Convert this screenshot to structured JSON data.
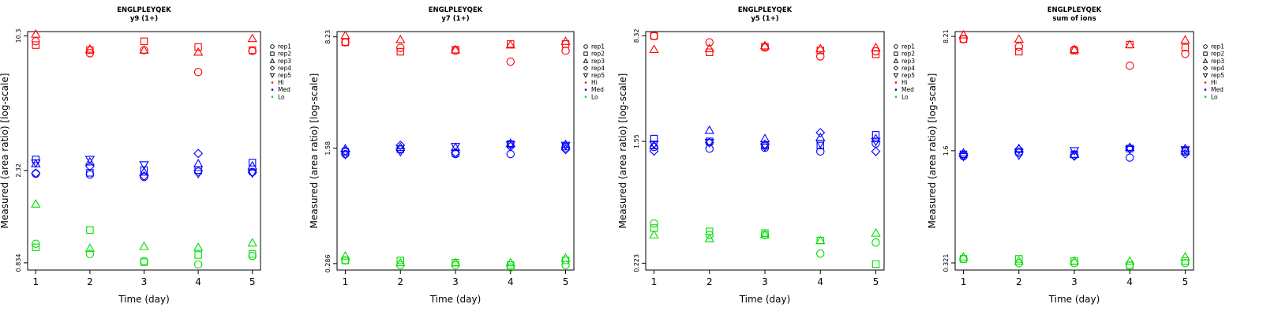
{
  "chart_data": [
    {
      "type": "scatter",
      "title": "ENGLPLEYQEK",
      "subtitle": "y9 (1+)",
      "xlabel": "Time (day)",
      "ylabel": "Measured (area ratio) [log-scale]",
      "log_y": true,
      "ylim": [
        0.77,
        10.8
      ],
      "x_ticks": [
        1,
        2,
        3,
        4,
        5
      ],
      "y_ticks": [
        0.834,
        2.32,
        10.3
      ],
      "y_tick_labels": [
        "0.834",
        "2.32",
        "10.3"
      ],
      "series": [
        {
          "name": "rep1",
          "level": "Hi",
          "x": [
            1,
            2,
            3,
            4,
            5
          ],
          "y": [
            9.7,
            8.5,
            8.8,
            6.9,
            8.7
          ]
        },
        {
          "name": "rep2",
          "level": "Hi",
          "x": [
            1,
            2,
            3,
            4,
            5
          ],
          "y": [
            9.3,
            8.8,
            9.7,
            9.1,
            8.8
          ]
        },
        {
          "name": "rep3",
          "level": "Hi",
          "x": [
            1,
            2,
            3,
            4,
            5
          ],
          "y": [
            10.5,
            8.9,
            8.8,
            8.6,
            10.0
          ]
        },
        {
          "name": "rep1",
          "level": "Med",
          "x": [
            1,
            2,
            3,
            4,
            5
          ],
          "y": [
            2.24,
            2.22,
            2.16,
            2.29,
            2.28
          ]
        },
        {
          "name": "rep2",
          "level": "Med",
          "x": [
            1,
            2,
            3,
            4,
            5
          ],
          "y": [
            2.62,
            2.26,
            2.33,
            2.33,
            2.53
          ]
        },
        {
          "name": "rep3",
          "level": "Med",
          "x": [
            1,
            2,
            3,
            4,
            5
          ],
          "y": [
            2.5,
            2.55,
            2.28,
            2.5,
            2.44
          ]
        },
        {
          "name": "rep4",
          "level": "Med",
          "x": [
            1,
            2,
            3,
            4,
            5
          ],
          "y": [
            2.25,
            2.43,
            2.18,
            2.8,
            2.27
          ]
        },
        {
          "name": "rep5",
          "level": "Med",
          "x": [
            1,
            2,
            3,
            4,
            5
          ],
          "y": [
            2.52,
            2.62,
            2.47,
            2.24,
            2.25
          ]
        },
        {
          "name": "rep1",
          "level": "Lo",
          "x": [
            1,
            2,
            3,
            4,
            5
          ],
          "y": [
            1.03,
            0.92,
            0.85,
            0.82,
            0.9
          ]
        },
        {
          "name": "rep2",
          "level": "Lo",
          "x": [
            1,
            2,
            3,
            4,
            5
          ],
          "y": [
            0.99,
            1.2,
            0.84,
            0.91,
            0.92
          ]
        },
        {
          "name": "rep3",
          "level": "Lo",
          "x": [
            1,
            2,
            3,
            4,
            5
          ],
          "y": [
            1.6,
            0.98,
            1.0,
            0.99,
            1.04
          ]
        }
      ]
    },
    {
      "type": "scatter",
      "title": "ENGLPLEYQEK",
      "subtitle": "y7 (1+)",
      "xlabel": "Time (day)",
      "ylabel": "Measured (area ratio) [log-scale]",
      "log_y": true,
      "ylim": [
        0.26,
        8.9
      ],
      "x_ticks": [
        1,
        2,
        3,
        4,
        5
      ],
      "y_ticks": [
        0.286,
        1.58,
        8.23
      ],
      "y_tick_labels": [
        "0.286",
        "1.58",
        "8.23"
      ],
      "series": [
        {
          "name": "rep1",
          "level": "Hi",
          "x": [
            1,
            2,
            3,
            4,
            5
          ],
          "y": [
            7.6,
            7.0,
            6.7,
            5.7,
            6.7
          ]
        },
        {
          "name": "rep2",
          "level": "Hi",
          "x": [
            1,
            2,
            3,
            4,
            5
          ],
          "y": [
            7.6,
            6.6,
            6.8,
            7.4,
            7.4
          ]
        },
        {
          "name": "rep3",
          "level": "Hi",
          "x": [
            1,
            2,
            3,
            4,
            5
          ],
          "y": [
            8.4,
            7.9,
            6.8,
            7.3,
            7.7
          ]
        },
        {
          "name": "rep1",
          "level": "Med",
          "x": [
            1,
            2,
            3,
            4,
            5
          ],
          "y": [
            1.45,
            1.55,
            1.45,
            1.45,
            1.58
          ]
        },
        {
          "name": "rep2",
          "level": "Med",
          "x": [
            1,
            2,
            3,
            4,
            5
          ],
          "y": [
            1.5,
            1.56,
            1.47,
            1.68,
            1.62
          ]
        },
        {
          "name": "rep3",
          "level": "Med",
          "x": [
            1,
            2,
            3,
            4,
            5
          ],
          "y": [
            1.57,
            1.6,
            1.6,
            1.7,
            1.67
          ]
        },
        {
          "name": "rep4",
          "level": "Med",
          "x": [
            1,
            2,
            3,
            4,
            5
          ],
          "y": [
            1.52,
            1.65,
            1.48,
            1.62,
            1.55
          ]
        },
        {
          "name": "rep5",
          "level": "Med",
          "x": [
            1,
            2,
            3,
            4,
            5
          ],
          "y": [
            1.44,
            1.5,
            1.62,
            1.66,
            1.65
          ]
        },
        {
          "name": "rep1",
          "level": "Lo",
          "x": [
            1,
            2,
            3,
            4,
            5
          ],
          "y": [
            0.3,
            0.28,
            0.28,
            0.27,
            0.28
          ]
        },
        {
          "name": "rep2",
          "level": "Lo",
          "x": [
            1,
            2,
            3,
            4,
            5
          ],
          "y": [
            0.3,
            0.3,
            0.29,
            0.28,
            0.3
          ]
        },
        {
          "name": "rep3",
          "level": "Lo",
          "x": [
            1,
            2,
            3,
            4,
            5
          ],
          "y": [
            0.32,
            0.29,
            0.29,
            0.29,
            0.31
          ]
        }
      ]
    },
    {
      "type": "scatter",
      "title": "ENGLPLEYQEK",
      "subtitle": "y5 (1+)",
      "xlabel": "Time (day)",
      "ylabel": "Measured (area ratio) [log-scale]",
      "log_y": true,
      "ylim": [
        0.2,
        8.9
      ],
      "x_ticks": [
        1,
        2,
        3,
        4,
        5
      ],
      "y_ticks": [
        0.223,
        1.55,
        8.32
      ],
      "y_tick_labels": [
        "0.223",
        "1.55",
        "8.32"
      ],
      "series": [
        {
          "name": "rep1",
          "level": "Hi",
          "x": [
            1,
            2,
            3,
            4,
            5
          ],
          "y": [
            8.3,
            7.5,
            6.9,
            6.0,
            6.5
          ]
        },
        {
          "name": "rep2",
          "level": "Hi",
          "x": [
            1,
            2,
            3,
            4,
            5
          ],
          "y": [
            8.3,
            6.4,
            7.0,
            6.6,
            6.2
          ]
        },
        {
          "name": "rep3",
          "level": "Hi",
          "x": [
            1,
            2,
            3,
            4,
            5
          ],
          "y": [
            6.7,
            6.8,
            7.1,
            6.8,
            6.9
          ]
        },
        {
          "name": "rep1",
          "level": "Med",
          "x": [
            1,
            2,
            3,
            4,
            5
          ],
          "y": [
            1.42,
            1.38,
            1.4,
            1.32,
            1.5
          ]
        },
        {
          "name": "rep2",
          "level": "Med",
          "x": [
            1,
            2,
            3,
            4,
            5
          ],
          "y": [
            1.62,
            1.55,
            1.45,
            1.45,
            1.72
          ]
        },
        {
          "name": "rep3",
          "level": "Med",
          "x": [
            1,
            2,
            3,
            4,
            5
          ],
          "y": [
            1.45,
            1.85,
            1.62,
            1.65,
            1.62
          ]
        },
        {
          "name": "rep4",
          "level": "Med",
          "x": [
            1,
            2,
            3,
            4,
            5
          ],
          "y": [
            1.33,
            1.52,
            1.48,
            1.78,
            1.32
          ]
        },
        {
          "name": "rep5",
          "level": "Med",
          "x": [
            1,
            2,
            3,
            4,
            5
          ],
          "y": [
            1.48,
            1.52,
            1.42,
            1.5,
            1.55
          ]
        },
        {
          "name": "rep1",
          "level": "Lo",
          "x": [
            1,
            2,
            3,
            4,
            5
          ],
          "y": [
            0.42,
            0.35,
            0.35,
            0.26,
            0.31
          ]
        },
        {
          "name": "rep2",
          "level": "Lo",
          "x": [
            1,
            2,
            3,
            4,
            5
          ],
          "y": [
            0.39,
            0.37,
            0.36,
            0.32,
            0.22
          ]
        },
        {
          "name": "rep3",
          "level": "Lo",
          "x": [
            1,
            2,
            3,
            4,
            5
          ],
          "y": [
            0.35,
            0.33,
            0.35,
            0.32,
            0.36
          ]
        }
      ]
    },
    {
      "type": "scatter",
      "title": "ENGLPLEYQEK",
      "subtitle": "sum of ions",
      "xlabel": "Time (day)",
      "ylabel": "Measured (area ratio) [log-scale]",
      "log_y": true,
      "ylim": [
        0.29,
        8.8
      ],
      "x_ticks": [
        1,
        2,
        3,
        4,
        5
      ],
      "y_ticks": [
        0.321,
        1.6,
        8.21
      ],
      "y_tick_labels": [
        "0.321",
        "1.6",
        "8.21"
      ],
      "series": [
        {
          "name": "rep1",
          "level": "Hi",
          "x": [
            1,
            2,
            3,
            4,
            5
          ],
          "y": [
            7.9,
            7.1,
            6.8,
            5.4,
            6.4
          ]
        },
        {
          "name": "rep2",
          "level": "Hi",
          "x": [
            1,
            2,
            3,
            4,
            5
          ],
          "y": [
            7.9,
            6.6,
            6.7,
            7.3,
            7.0
          ]
        },
        {
          "name": "rep3",
          "level": "Hi",
          "x": [
            1,
            2,
            3,
            4,
            5
          ],
          "y": [
            8.4,
            7.9,
            6.8,
            7.3,
            7.8
          ]
        },
        {
          "name": "rep1",
          "level": "Med",
          "x": [
            1,
            2,
            3,
            4,
            5
          ],
          "y": [
            1.48,
            1.55,
            1.5,
            1.45,
            1.58
          ]
        },
        {
          "name": "rep2",
          "level": "Med",
          "x": [
            1,
            2,
            3,
            4,
            5
          ],
          "y": [
            1.52,
            1.58,
            1.52,
            1.65,
            1.6
          ]
        },
        {
          "name": "rep3",
          "level": "Med",
          "x": [
            1,
            2,
            3,
            4,
            5
          ],
          "y": [
            1.55,
            1.65,
            1.52,
            1.68,
            1.65
          ]
        },
        {
          "name": "rep4",
          "level": "Med",
          "x": [
            1,
            2,
            3,
            4,
            5
          ],
          "y": [
            1.5,
            1.63,
            1.48,
            1.66,
            1.53
          ]
        },
        {
          "name": "rep5",
          "level": "Med",
          "x": [
            1,
            2,
            3,
            4,
            5
          ],
          "y": [
            1.47,
            1.5,
            1.6,
            1.63,
            1.62
          ]
        },
        {
          "name": "rep1",
          "level": "Lo",
          "x": [
            1,
            2,
            3,
            4,
            5
          ],
          "y": [
            0.34,
            0.32,
            0.32,
            0.31,
            0.32
          ]
        },
        {
          "name": "rep2",
          "level": "Lo",
          "x": [
            1,
            2,
            3,
            4,
            5
          ],
          "y": [
            0.34,
            0.34,
            0.33,
            0.31,
            0.33
          ]
        },
        {
          "name": "rep3",
          "level": "Lo",
          "x": [
            1,
            2,
            3,
            4,
            5
          ],
          "y": [
            0.35,
            0.33,
            0.33,
            0.33,
            0.35
          ]
        }
      ]
    }
  ],
  "legend": {
    "placement": "right of each panel",
    "items": [
      {
        "label": "rep1",
        "symbol": "circle",
        "color": "#000000"
      },
      {
        "label": "rep2",
        "symbol": "square",
        "color": "#000000"
      },
      {
        "label": "rep3",
        "symbol": "triangle-up",
        "color": "#000000"
      },
      {
        "label": "rep4",
        "symbol": "diamond",
        "color": "#000000"
      },
      {
        "label": "rep5",
        "symbol": "triangle-down",
        "color": "#000000"
      },
      {
        "label": "Hi",
        "symbol": "dot",
        "color": "#ff0000"
      },
      {
        "label": "Med",
        "symbol": "dot",
        "color": "#0000ff"
      },
      {
        "label": "Lo",
        "symbol": "dot",
        "color": "#00dd00"
      }
    ]
  },
  "colors": {
    "Hi": "#ff0000",
    "Med": "#0000ff",
    "Lo": "#00dd00"
  }
}
